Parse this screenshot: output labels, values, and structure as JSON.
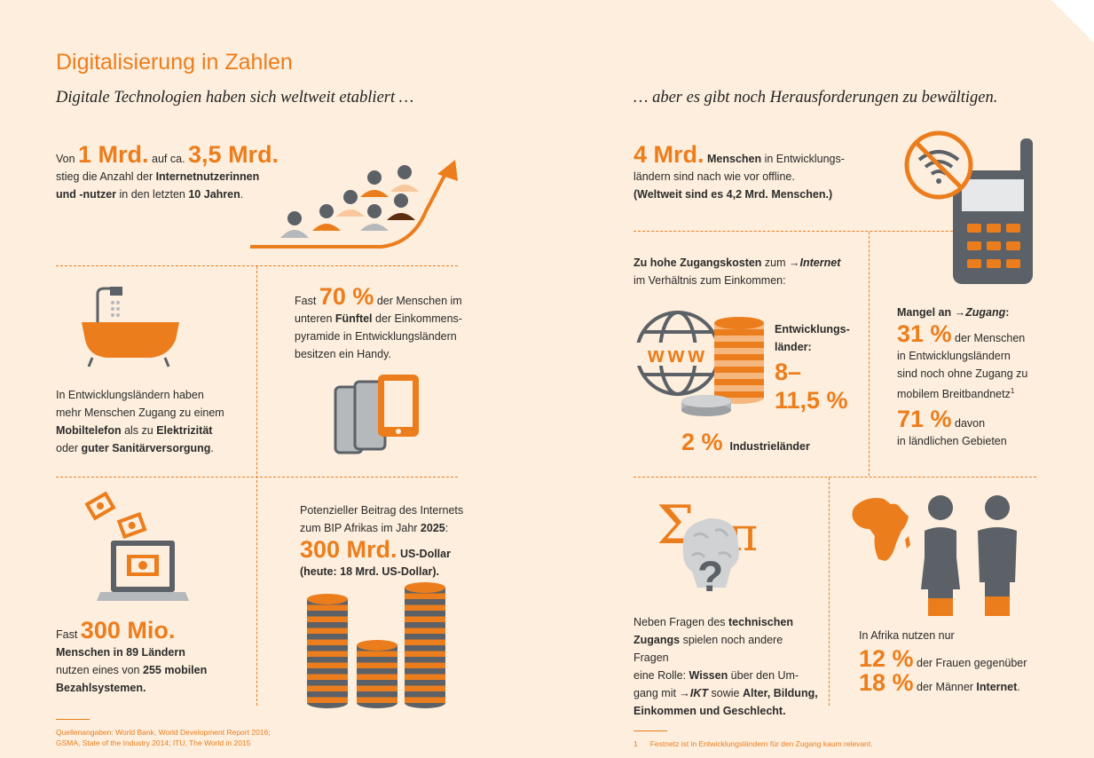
{
  "title": "Digitalisierung in Zahlen",
  "subtitle_left": "Digitale Technologien haben sich weltweit etabliert …",
  "subtitle_right": "… aber es gibt noch Herausforderungen zu bewältigen.",
  "users": {
    "t1": "Von ",
    "v1": "1 Mrd.",
    "t2": " auf ca. ",
    "v2": "3,5 Mrd.",
    "l2a": "stieg die Anzahl der ",
    "l2b": "Internetnutzerinnen",
    "l3a": "und -nutzer",
    "l3b": " in den letzten ",
    "l3c": "10 Jahren",
    "l3d": "."
  },
  "sanitation": {
    "l1": "In Entwicklungsländern haben",
    "l2": "mehr Menschen Zugang zu einem",
    "l3a": "Mobiltelefon",
    "l3b": " als zu ",
    "l3c": "Elektrizität",
    "l4a": "oder ",
    "l4b": "guter Sanitärversorgung",
    "l4c": "."
  },
  "handy": {
    "pre": "Fast ",
    "value": "70 %",
    "post": " der Menschen im",
    "l2a": "unteren ",
    "l2b": "Fünftel",
    "l2c": " der Einkommens-",
    "l3": "pyramide in Entwicklungsländern",
    "l4": "besitzen ein Handy."
  },
  "payments": {
    "pre": "Fast ",
    "value": "300 Mio.",
    "l2": "Menschen in 89 Ländern",
    "l3a": "nutzen eines von ",
    "l3b": "255 mobilen",
    "l4": "Bezahlsystemen."
  },
  "gdp": {
    "l1": "Potenzieller Beitrag des Internets",
    "l2a": "zum BIP Afrikas im Jahr ",
    "l2b": "2025",
    "l2c": ":",
    "value": "300 Mrd.",
    "unit": " US-Dollar",
    "l4": "(heute: 18 Mrd. US-Dollar)."
  },
  "offline": {
    "value": "4 Mrd.",
    "a": " Menschen",
    "b": " in Entwicklungs-",
    "l2": "ländern sind nach wie vor offline.",
    "l3": "(Weltweit sind es 4,2 Mrd. Menschen.)"
  },
  "costs": {
    "l1a": "Zu hohe Zugangskosten",
    "l1b": " zum ",
    "arrow": "→",
    "l1c": "Internet",
    "l2": "im Verhältnis zum Einkommen:",
    "www": "www",
    "dev_label_1": "Entwicklungs-",
    "dev_label_2": "länder:",
    "dev_value_1": "8–",
    "dev_value_2": "11,5 %",
    "ind_value": "2 %",
    "ind_label": "Industrieländer"
  },
  "access": {
    "head_a": "Mangel an ",
    "arrow": "→",
    "head_b": "Zugang",
    "head_c": ":",
    "v1": "31 %",
    "v1_post": " der Menschen",
    "l2": "in Entwicklungsländern",
    "l3": "sind noch ohne Zugang zu",
    "l4": "mobilem Breitbandnetz",
    "sup": "1",
    "v2": "71 %",
    "v2_post": " davon",
    "l6": "in ländlichen Gebieten"
  },
  "questions": {
    "sigma": "Σ",
    "pi": "π",
    "q": "?",
    "l1a": "Neben Fragen des ",
    "l1b": "technischen",
    "l2a": "Zugangs",
    "l2b": " spielen noch andere Fragen",
    "l3a": "eine Rolle: ",
    "l3b": "Wissen",
    "l3c": " über den Um-",
    "l4a": "gang mit ",
    "arrow": "→",
    "l4b": "IKT",
    "l4c": " sowie ",
    "l4d": "Alter, Bildung,",
    "l5": "Einkommen und Geschlecht."
  },
  "gender": {
    "l1": "In Afrika nutzen nur",
    "v1": "12 %",
    "p1": " der Frauen gegenüber",
    "v2": "18 %",
    "p2a": " der Männer ",
    "p2b": "Internet",
    "p2c": "."
  },
  "sources": {
    "l1": "Quellenangaben: World Bank, World Development Report 2016;",
    "l2": "GSMA, State of the Industry 2014; ITU, The World in 2015"
  },
  "footnote": {
    "num": "1",
    "text": "Festnetz ist in Entwicklungsländern für den Zugang kaum relevant."
  },
  "colors": {
    "accent": "#ec7d1c",
    "dark": "#5b6167",
    "background": "#fdeedd"
  }
}
